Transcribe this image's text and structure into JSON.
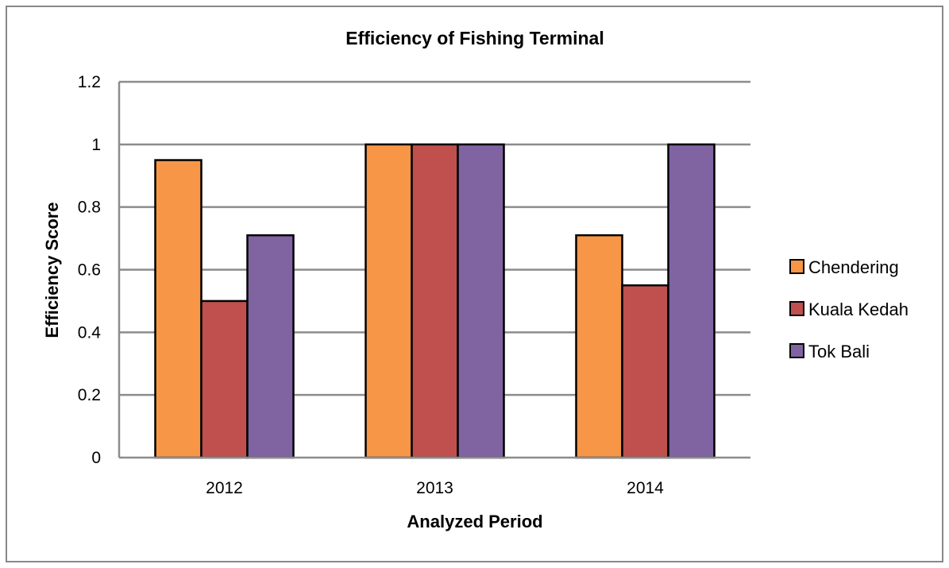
{
  "chart_data": {
    "type": "bar",
    "title": "Efficiency of Fishing Terminal",
    "xlabel": "Analyzed Period",
    "ylabel": "Efficiency Score",
    "categories": [
      "2012",
      "2013",
      "2014"
    ],
    "series": [
      {
        "name": "Chendering",
        "color": "#f79646",
        "values": [
          0.95,
          1.0,
          0.71
        ]
      },
      {
        "name": "Kuala Kedah",
        "color": "#c0504d",
        "values": [
          0.5,
          1.0,
          0.55
        ]
      },
      {
        "name": "Tok Bali",
        "color": "#8064a2",
        "values": [
          0.71,
          1.0,
          1.0
        ]
      }
    ],
    "ylim": [
      0,
      1.2
    ],
    "yticks": [
      "0",
      "0.2",
      "0.4",
      "0.6",
      "0.8",
      "1",
      "1.2"
    ],
    "grid": true,
    "legend_position": "right"
  }
}
